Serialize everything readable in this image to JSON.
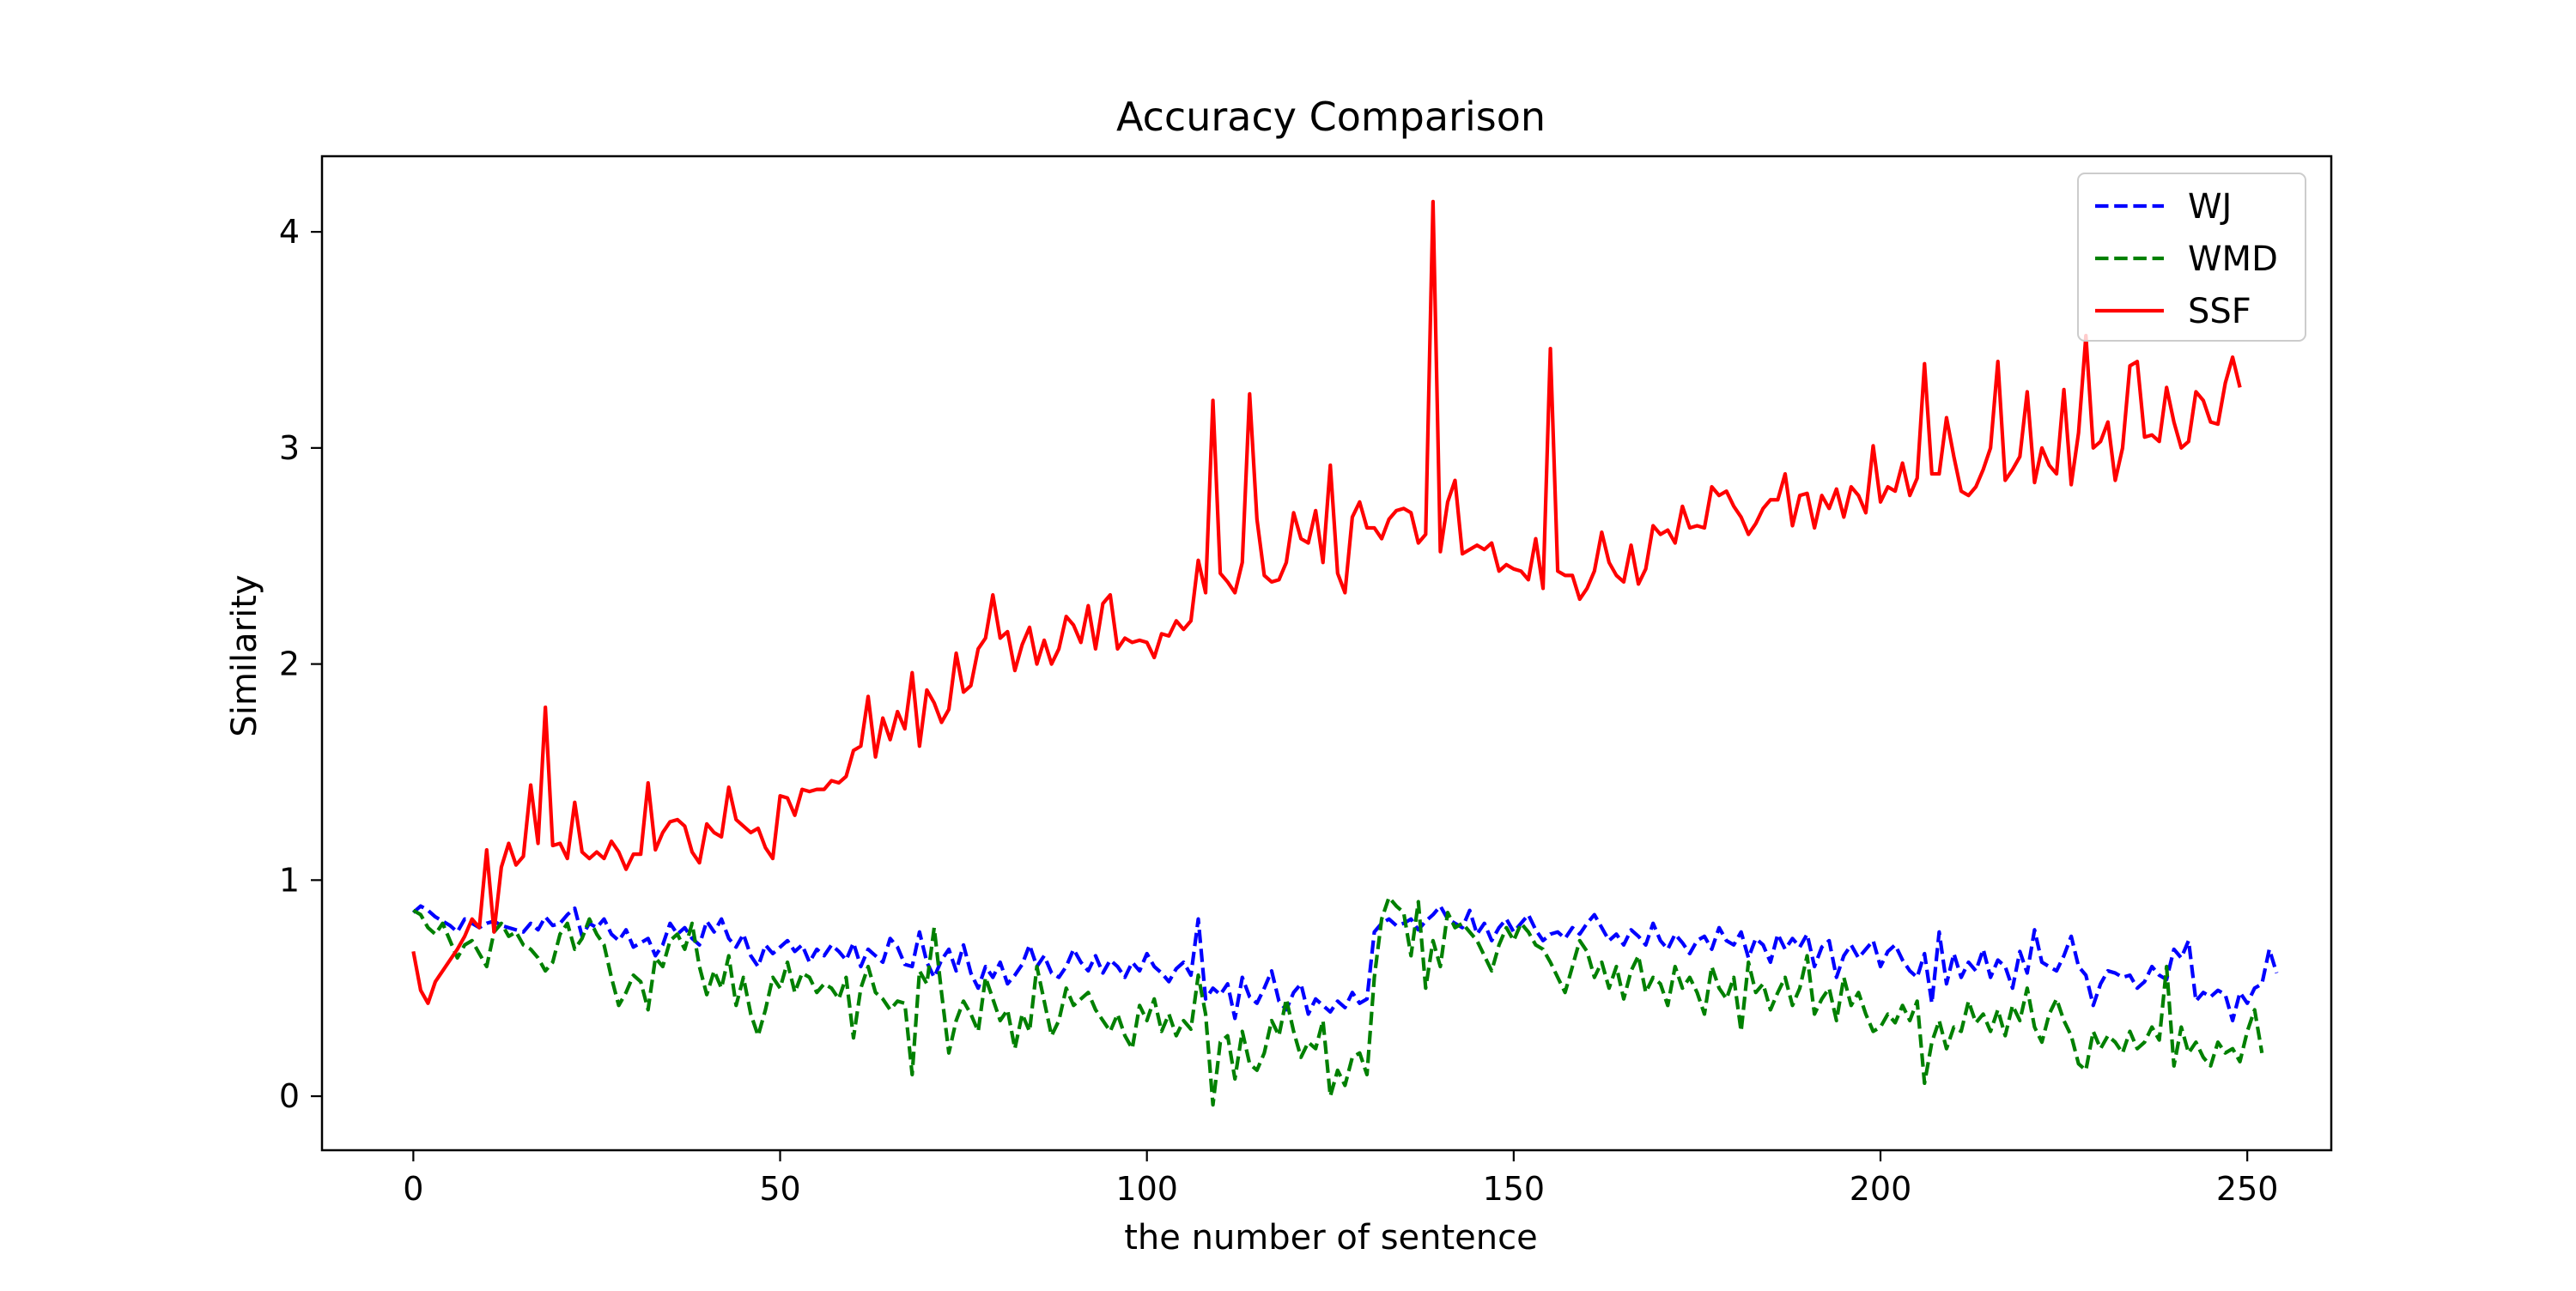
{
  "chart_data": {
    "type": "line",
    "title": "Accuracy Comparison",
    "xlabel": "the number of sentence",
    "ylabel": "Similarity",
    "xlim": [
      -12.45,
      261.45
    ],
    "ylim": [
      -0.25,
      4.35
    ],
    "xticks": [
      0,
      50,
      100,
      150,
      200,
      250
    ],
    "yticks": [
      0,
      1,
      2,
      3,
      4
    ],
    "grid": false,
    "legend_position": "top-right",
    "series": [
      {
        "name": "WJ",
        "color": "#0000ff",
        "style": "dashed",
        "x_start": 0,
        "x_step": 1,
        "values": [
          0.85,
          0.88,
          0.86,
          0.83,
          0.81,
          0.79,
          0.76,
          0.82,
          0.8,
          0.78,
          0.8,
          0.81,
          0.79,
          0.78,
          0.77,
          0.76,
          0.8,
          0.77,
          0.83,
          0.79,
          0.8,
          0.84,
          0.87,
          0.74,
          0.8,
          0.78,
          0.82,
          0.75,
          0.72,
          0.77,
          0.69,
          0.71,
          0.73,
          0.65,
          0.7,
          0.8,
          0.75,
          0.78,
          0.73,
          0.7,
          0.81,
          0.76,
          0.82,
          0.73,
          0.69,
          0.75,
          0.65,
          0.6,
          0.7,
          0.66,
          0.69,
          0.72,
          0.67,
          0.7,
          0.62,
          0.68,
          0.65,
          0.7,
          0.67,
          0.63,
          0.71,
          0.6,
          0.68,
          0.65,
          0.62,
          0.73,
          0.69,
          0.61,
          0.6,
          0.76,
          0.62,
          0.55,
          0.63,
          0.68,
          0.58,
          0.7,
          0.57,
          0.5,
          0.6,
          0.55,
          0.62,
          0.52,
          0.56,
          0.61,
          0.7,
          0.6,
          0.65,
          0.57,
          0.55,
          0.6,
          0.68,
          0.62,
          0.58,
          0.65,
          0.57,
          0.63,
          0.6,
          0.55,
          0.62,
          0.58,
          0.66,
          0.6,
          0.57,
          0.53,
          0.59,
          0.62,
          0.56,
          0.82,
          0.45,
          0.5,
          0.47,
          0.52,
          0.36,
          0.55,
          0.46,
          0.43,
          0.5,
          0.58,
          0.44,
          0.4,
          0.48,
          0.52,
          0.38,
          0.45,
          0.42,
          0.39,
          0.44,
          0.41,
          0.48,
          0.43,
          0.45,
          0.76,
          0.8,
          0.82,
          0.79,
          0.8,
          0.82,
          0.77,
          0.81,
          0.84,
          0.88,
          0.82,
          0.8,
          0.78,
          0.86,
          0.75,
          0.8,
          0.72,
          0.78,
          0.82,
          0.76,
          0.8,
          0.84,
          0.77,
          0.72,
          0.75,
          0.76,
          0.73,
          0.78,
          0.75,
          0.8,
          0.84,
          0.78,
          0.72,
          0.75,
          0.7,
          0.77,
          0.74,
          0.7,
          0.8,
          0.72,
          0.68,
          0.75,
          0.71,
          0.66,
          0.72,
          0.74,
          0.68,
          0.78,
          0.72,
          0.7,
          0.76,
          0.64,
          0.73,
          0.7,
          0.62,
          0.75,
          0.68,
          0.73,
          0.69,
          0.75,
          0.6,
          0.69,
          0.72,
          0.55,
          0.65,
          0.7,
          0.64,
          0.68,
          0.72,
          0.6,
          0.67,
          0.7,
          0.63,
          0.58,
          0.55,
          0.66,
          0.43,
          0.76,
          0.52,
          0.66,
          0.55,
          0.62,
          0.58,
          0.68,
          0.55,
          0.63,
          0.6,
          0.5,
          0.67,
          0.57,
          0.77,
          0.62,
          0.6,
          0.58,
          0.65,
          0.74,
          0.6,
          0.56,
          0.42,
          0.52,
          0.58,
          0.57,
          0.55,
          0.56,
          0.5,
          0.53,
          0.6,
          0.56,
          0.54,
          0.68,
          0.64,
          0.72,
          0.44,
          0.48,
          0.46,
          0.49,
          0.47,
          0.35,
          0.48,
          0.43,
          0.5,
          0.52,
          0.68,
          0.57
        ]
      },
      {
        "name": "WMD",
        "color": "#008000",
        "style": "dashed",
        "x_start": 0,
        "x_step": 1,
        "values": [
          0.86,
          0.84,
          0.78,
          0.75,
          0.8,
          0.72,
          0.64,
          0.7,
          0.72,
          0.66,
          0.6,
          0.76,
          0.8,
          0.74,
          0.76,
          0.7,
          0.68,
          0.64,
          0.58,
          0.62,
          0.75,
          0.8,
          0.68,
          0.73,
          0.82,
          0.75,
          0.7,
          0.55,
          0.42,
          0.48,
          0.56,
          0.53,
          0.4,
          0.64,
          0.6,
          0.72,
          0.75,
          0.68,
          0.8,
          0.6,
          0.47,
          0.58,
          0.5,
          0.65,
          0.42,
          0.55,
          0.38,
          0.28,
          0.4,
          0.55,
          0.5,
          0.62,
          0.48,
          0.57,
          0.55,
          0.48,
          0.52,
          0.5,
          0.45,
          0.55,
          0.27,
          0.5,
          0.6,
          0.48,
          0.45,
          0.4,
          0.44,
          0.43,
          0.1,
          0.58,
          0.52,
          0.78,
          0.48,
          0.2,
          0.35,
          0.44,
          0.38,
          0.3,
          0.55,
          0.45,
          0.35,
          0.4,
          0.22,
          0.38,
          0.3,
          0.6,
          0.44,
          0.28,
          0.35,
          0.5,
          0.42,
          0.45,
          0.48,
          0.4,
          0.35,
          0.3,
          0.38,
          0.28,
          0.22,
          0.42,
          0.35,
          0.45,
          0.3,
          0.38,
          0.28,
          0.35,
          0.31,
          0.56,
          0.38,
          -0.04,
          0.25,
          0.28,
          0.08,
          0.3,
          0.15,
          0.12,
          0.2,
          0.35,
          0.28,
          0.45,
          0.3,
          0.18,
          0.25,
          0.22,
          0.35,
          0.0,
          0.12,
          0.05,
          0.18,
          0.2,
          0.1,
          0.55,
          0.82,
          0.92,
          0.88,
          0.85,
          0.65,
          0.9,
          0.5,
          0.72,
          0.6,
          0.85,
          0.78,
          0.8,
          0.76,
          0.72,
          0.65,
          0.58,
          0.7,
          0.78,
          0.72,
          0.8,
          0.76,
          0.7,
          0.68,
          0.62,
          0.55,
          0.48,
          0.6,
          0.72,
          0.67,
          0.55,
          0.62,
          0.5,
          0.6,
          0.45,
          0.58,
          0.65,
          0.48,
          0.55,
          0.52,
          0.42,
          0.6,
          0.5,
          0.55,
          0.48,
          0.38,
          0.6,
          0.5,
          0.45,
          0.55,
          0.3,
          0.62,
          0.48,
          0.52,
          0.4,
          0.48,
          0.55,
          0.42,
          0.5,
          0.65,
          0.38,
          0.45,
          0.5,
          0.35,
          0.55,
          0.42,
          0.48,
          0.38,
          0.3,
          0.32,
          0.38,
          0.34,
          0.42,
          0.35,
          0.44,
          0.06,
          0.25,
          0.35,
          0.22,
          0.32,
          0.3,
          0.44,
          0.34,
          0.38,
          0.3,
          0.4,
          0.28,
          0.42,
          0.35,
          0.5,
          0.32,
          0.25,
          0.38,
          0.45,
          0.35,
          0.28,
          0.15,
          0.12,
          0.3,
          0.22,
          0.28,
          0.25,
          0.2,
          0.3,
          0.22,
          0.25,
          0.32,
          0.26,
          0.6,
          0.14,
          0.32,
          0.2,
          0.25,
          0.18,
          0.14,
          0.25,
          0.2,
          0.22,
          0.16,
          0.3,
          0.4,
          0.2
        ]
      },
      {
        "name": "SSF",
        "color": "#ff0000",
        "style": "solid",
        "x_start": 0,
        "x_step": 1,
        "values": [
          0.67,
          0.49,
          0.43,
          0.53,
          0.58,
          0.63,
          0.68,
          0.74,
          0.82,
          0.78,
          1.14,
          0.76,
          1.06,
          1.17,
          1.07,
          1.11,
          1.44,
          1.17,
          1.8,
          1.16,
          1.17,
          1.1,
          1.36,
          1.13,
          1.1,
          1.13,
          1.1,
          1.18,
          1.13,
          1.05,
          1.12,
          1.12,
          1.45,
          1.14,
          1.22,
          1.27,
          1.28,
          1.25,
          1.13,
          1.08,
          1.26,
          1.22,
          1.2,
          1.43,
          1.28,
          1.25,
          1.22,
          1.24,
          1.15,
          1.1,
          1.39,
          1.38,
          1.3,
          1.42,
          1.41,
          1.42,
          1.42,
          1.46,
          1.45,
          1.48,
          1.6,
          1.62,
          1.85,
          1.57,
          1.75,
          1.65,
          1.78,
          1.7,
          1.96,
          1.62,
          1.88,
          1.82,
          1.73,
          1.79,
          2.05,
          1.87,
          1.9,
          2.07,
          2.12,
          2.32,
          2.12,
          2.15,
          1.97,
          2.09,
          2.17,
          2.0,
          2.11,
          2.0,
          2.07,
          2.22,
          2.18,
          2.1,
          2.27,
          2.07,
          2.28,
          2.32,
          2.07,
          2.12,
          2.1,
          2.11,
          2.1,
          2.03,
          2.14,
          2.13,
          2.2,
          2.16,
          2.2,
          2.48,
          2.33,
          3.22,
          2.42,
          2.38,
          2.33,
          2.47,
          3.25,
          2.67,
          2.41,
          2.38,
          2.39,
          2.47,
          2.7,
          2.58,
          2.56,
          2.71,
          2.47,
          2.92,
          2.42,
          2.33,
          2.68,
          2.75,
          2.63,
          2.63,
          2.58,
          2.67,
          2.71,
          2.72,
          2.7,
          2.56,
          2.6,
          4.14,
          2.52,
          2.75,
          2.85,
          2.51,
          2.53,
          2.55,
          2.53,
          2.56,
          2.43,
          2.46,
          2.44,
          2.43,
          2.39,
          2.58,
          2.35,
          3.46,
          2.43,
          2.41,
          2.41,
          2.3,
          2.35,
          2.43,
          2.61,
          2.47,
          2.41,
          2.38,
          2.55,
          2.37,
          2.44,
          2.64,
          2.6,
          2.62,
          2.56,
          2.73,
          2.63,
          2.64,
          2.63,
          2.82,
          2.78,
          2.8,
          2.73,
          2.68,
          2.6,
          2.65,
          2.72,
          2.76,
          2.76,
          2.88,
          2.64,
          2.78,
          2.79,
          2.63,
          2.78,
          2.72,
          2.81,
          2.68,
          2.82,
          2.78,
          2.7,
          3.01,
          2.75,
          2.82,
          2.8,
          2.93,
          2.78,
          2.86,
          3.39,
          2.88,
          2.88,
          3.14,
          2.96,
          2.8,
          2.78,
          2.82,
          2.9,
          3.0,
          3.4,
          2.85,
          2.9,
          2.96,
          3.26,
          2.84,
          3.0,
          2.92,
          2.88,
          3.27,
          2.83,
          3.07,
          3.52,
          3.0,
          3.03,
          3.12,
          2.85,
          3.0,
          3.38,
          3.4,
          3.05,
          3.06,
          3.03,
          3.28,
          3.12,
          3.0,
          3.03,
          3.26,
          3.22,
          3.12,
          3.11,
          3.3,
          3.42,
          3.28
        ]
      }
    ]
  }
}
